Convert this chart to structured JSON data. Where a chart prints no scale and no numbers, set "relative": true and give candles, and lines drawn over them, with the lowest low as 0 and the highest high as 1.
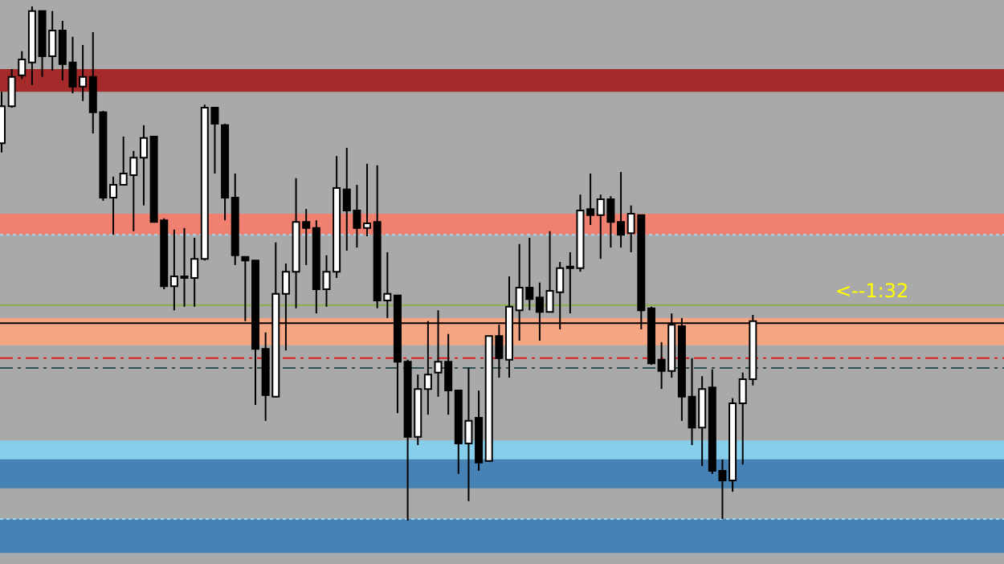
{
  "chart_data": {
    "type": "candlestick",
    "relative": true,
    "annotations": [
      "<--1:32"
    ],
    "categories": [
      null,
      null,
      null,
      null,
      null,
      null,
      null,
      null,
      null,
      null,
      null,
      null,
      null,
      null,
      null,
      null,
      null,
      null,
      null,
      null,
      null,
      null,
      null,
      null,
      null,
      null,
      null,
      null,
      null,
      null,
      null,
      null,
      null,
      null,
      null,
      null,
      null,
      null,
      null,
      null,
      null,
      null,
      null,
      null,
      null,
      null,
      null,
      null,
      null,
      null,
      null,
      null,
      null,
      null,
      null,
      null,
      null,
      null,
      null,
      null,
      null,
      null,
      null,
      null,
      null,
      null,
      null,
      null,
      null,
      null,
      null,
      null,
      null,
      null,
      null
    ],
    "ohlc": [
      [
        0.734,
        0.834,
        0.716,
        0.806
      ],
      [
        0.806,
        0.878,
        0.803,
        0.863
      ],
      [
        0.866,
        0.913,
        0.859,
        0.897
      ],
      [
        0.891,
        1,
        0.847,
        0.991
      ],
      [
        0.991,
        0.991,
        0.863,
        0.903
      ],
      [
        0.903,
        0.991,
        0.875,
        0.953
      ],
      [
        0.953,
        0.972,
        0.856,
        0.888
      ],
      [
        0.891,
        0.941,
        0.831,
        0.844
      ],
      [
        0.844,
        0.925,
        0.816,
        0.863
      ],
      [
        0.863,
        0.95,
        0.753,
        0.794
      ],
      [
        0.794,
        0.797,
        0.622,
        0.628
      ],
      [
        0.628,
        0.669,
        0.556,
        0.653
      ],
      [
        0.653,
        0.747,
        0.653,
        0.675
      ],
      [
        0.672,
        0.719,
        0.563,
        0.706
      ],
      [
        0.706,
        0.769,
        0.613,
        0.744
      ],
      [
        0.747,
        0.747,
        0.581,
        0.581
      ],
      [
        0.584,
        0.588,
        0.45,
        0.456
      ],
      [
        0.456,
        0.566,
        0.409,
        0.475
      ],
      [
        0.475,
        0.569,
        0.416,
        0.472
      ],
      [
        0.472,
        0.55,
        0.416,
        0.509
      ],
      [
        0.509,
        0.809,
        0.506,
        0.803
      ],
      [
        0.803,
        0.803,
        0.675,
        0.772
      ],
      [
        0.769,
        0.772,
        0.584,
        0.628
      ],
      [
        0.628,
        0.675,
        0.497,
        0.516
      ],
      [
        0.513,
        0.513,
        0.388,
        0.506
      ],
      [
        0.506,
        0.506,
        0.225,
        0.334
      ],
      [
        0.334,
        0.366,
        0.194,
        0.244
      ],
      [
        0.241,
        0.541,
        0.241,
        0.441
      ],
      [
        0.441,
        0.5,
        0.331,
        0.484
      ],
      [
        0.484,
        0.666,
        0.413,
        0.581
      ],
      [
        0.581,
        0.606,
        0.497,
        0.569
      ],
      [
        0.569,
        0.584,
        0.403,
        0.45
      ],
      [
        0.45,
        0.516,
        0.416,
        0.484
      ],
      [
        0.484,
        0.709,
        0.472,
        0.647
      ],
      [
        0.644,
        0.725,
        0.525,
        0.603
      ],
      [
        0.603,
        0.653,
        0.531,
        0.569
      ],
      [
        0.569,
        0.694,
        0.553,
        0.578
      ],
      [
        0.581,
        0.691,
        0.413,
        0.428
      ],
      [
        0.428,
        0.522,
        0.394,
        0.441
      ],
      [
        0.438,
        0.438,
        0.209,
        0.309
      ],
      [
        0.309,
        0.313,
        0,
        0.163
      ],
      [
        0.163,
        0.284,
        0.147,
        0.256
      ],
      [
        0.256,
        0.388,
        0.206,
        0.284
      ],
      [
        0.288,
        0.409,
        0.241,
        0.309
      ],
      [
        0.309,
        0.363,
        0.206,
        0.253
      ],
      [
        0.253,
        0.253,
        0.091,
        0.15
      ],
      [
        0.15,
        0.297,
        0.038,
        0.194
      ],
      [
        0.2,
        0.253,
        0.097,
        0.113
      ],
      [
        0.116,
        0.359,
        0.116,
        0.359
      ],
      [
        0.359,
        0.381,
        0.278,
        0.316
      ],
      [
        0.313,
        0.475,
        0.278,
        0.416
      ],
      [
        0.409,
        0.538,
        0.35,
        0.453
      ],
      [
        0.453,
        0.55,
        0.409,
        0.431
      ],
      [
        0.434,
        0.463,
        0.35,
        0.406
      ],
      [
        0.406,
        0.563,
        0.406,
        0.447
      ],
      [
        0.444,
        0.503,
        0.372,
        0.491
      ],
      [
        0.494,
        0.522,
        0.403,
        0.491
      ],
      [
        0.491,
        0.634,
        0.484,
        0.603
      ],
      [
        0.606,
        0.675,
        0.575,
        0.594
      ],
      [
        0.594,
        0.634,
        0.509,
        0.625
      ],
      [
        0.625,
        0.631,
        0.531,
        0.581
      ],
      [
        0.581,
        0.678,
        0.531,
        0.556
      ],
      [
        0.559,
        0.613,
        0.522,
        0.597
      ],
      [
        0.594,
        0.594,
        0.372,
        0.409
      ],
      [
        0.413,
        0.416,
        0.303,
        0.306
      ],
      [
        0.313,
        0.347,
        0.256,
        0.291
      ],
      [
        0.291,
        0.403,
        0.278,
        0.381
      ],
      [
        0.378,
        0.394,
        0.194,
        0.241
      ],
      [
        0.241,
        0.316,
        0.147,
        0.181
      ],
      [
        0.181,
        0.281,
        0.106,
        0.256
      ],
      [
        0.259,
        0.294,
        0.091,
        0.097
      ],
      [
        0.097,
        0.119,
        0.003,
        0.078
      ],
      [
        0.078,
        0.238,
        0.056,
        0.228
      ],
      [
        0.228,
        0.288,
        0.109,
        0.275
      ],
      [
        0.275,
        0.4,
        0.263,
        0.388
      ]
    ],
    "bands": [
      {
        "axis": "y",
        "from": 0.834,
        "to": 0.878,
        "color": "#a52a2a"
      },
      {
        "axis": "y",
        "from": 0.556,
        "to": 0.597,
        "color": "#f08070"
      },
      {
        "axis": "y",
        "from": 0.341,
        "to": 0.394,
        "color": "#f4a582"
      },
      {
        "axis": "y",
        "from": 0.106,
        "to": 0.156,
        "color": "#87ceeb"
      },
      {
        "axis": "y",
        "from": 0.063,
        "to": 0.119,
        "color": "#4682b4"
      },
      {
        "axis": "y",
        "from": -0.063,
        "to": 0.003,
        "color": "#4682b4"
      }
    ],
    "ref_lines": [
      {
        "axis": "y",
        "value": 0.419,
        "color": "#8db04a",
        "line_style": "solid"
      },
      {
        "axis": "y",
        "value": 0.384,
        "color": "#000000",
        "line_style": "solid"
      },
      {
        "axis": "y",
        "value": 0.316,
        "color": "#e02020",
        "line_style": "dashed"
      },
      {
        "axis": "y",
        "value": 0.297,
        "color": "#2f4f4f",
        "line_style": "dashed"
      },
      {
        "axis": "y",
        "value": 0.556,
        "color": "#9fd8f0",
        "line_style": "dotted"
      },
      {
        "axis": "y",
        "value": 0.003,
        "color": "#9fd8f0",
        "line_style": "dotted"
      }
    ]
  }
}
